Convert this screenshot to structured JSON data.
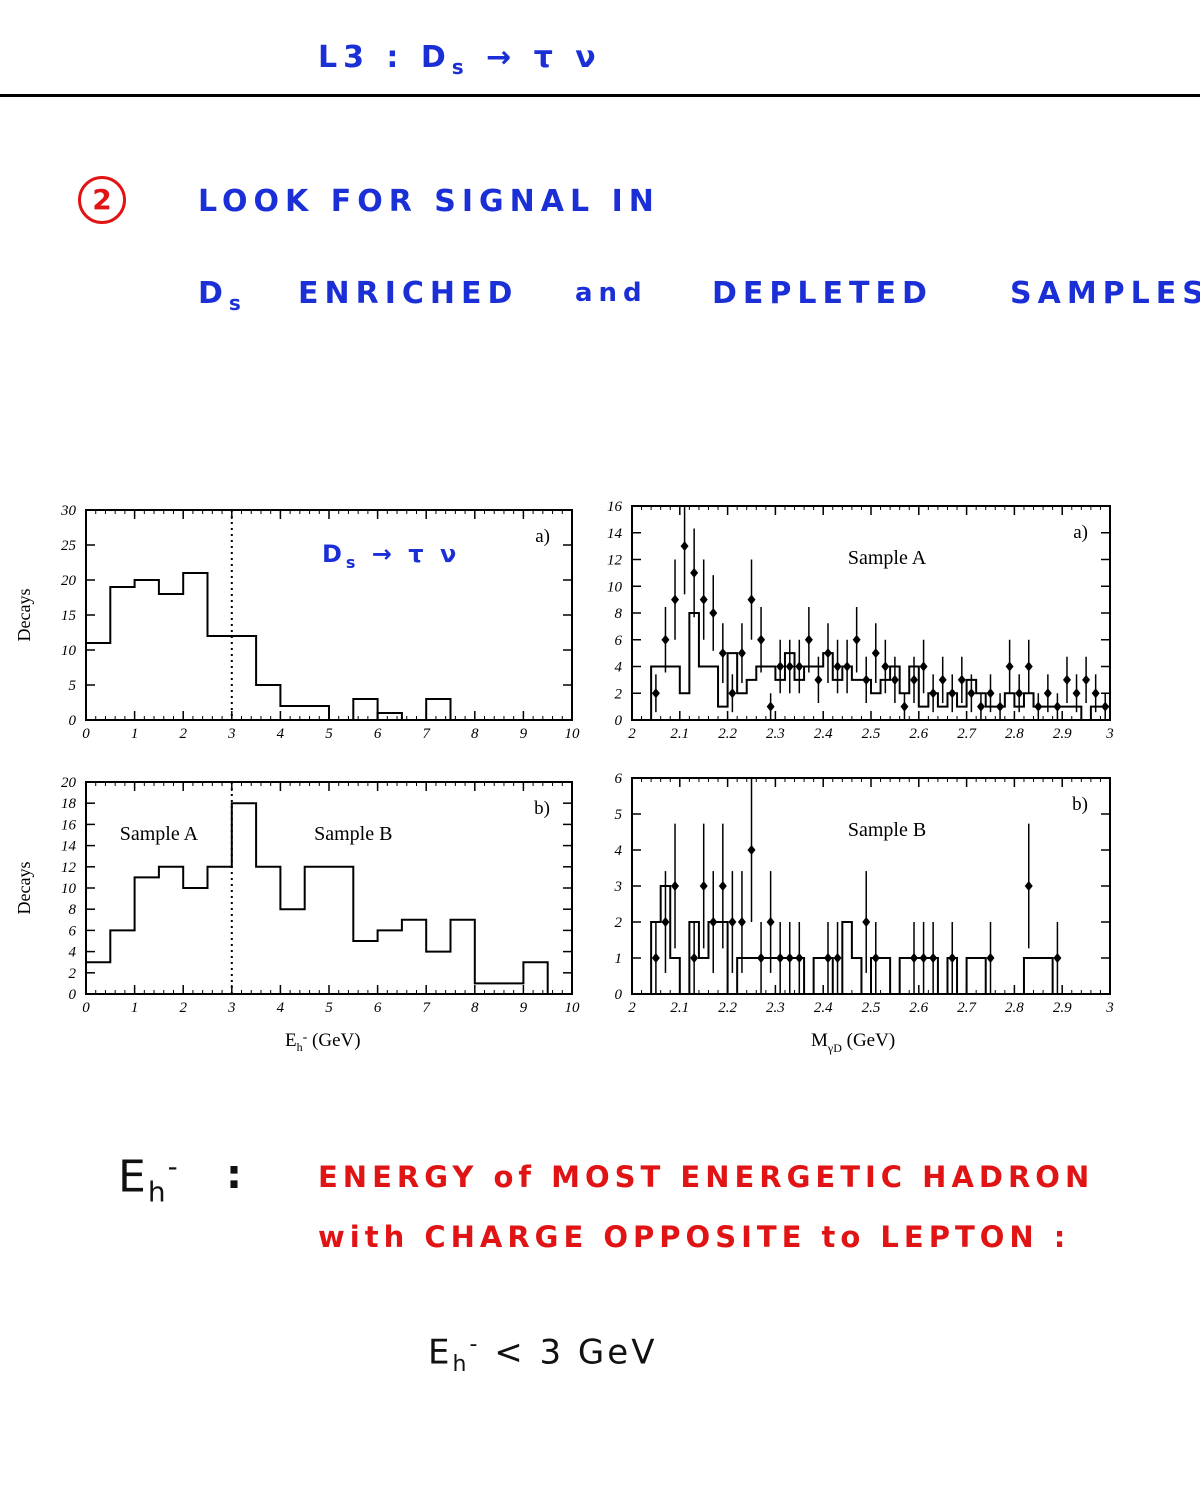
{
  "header": {
    "title": "L3  :  D",
    "title_sub": "s",
    "title_rest": " → τ ν"
  },
  "step": {
    "number": "2",
    "line1": "LOOK   FOR   SIGNAL     IN",
    "line2_a": "D",
    "line2_a_sub": "s",
    "line2_b": "ENRICHED",
    "line2_c": "and",
    "line2_d": "DEPLETED",
    "line2_e": "SAMPLES:"
  },
  "annotation": {
    "text": "D",
    "sub": "s",
    "rest": " → τ ν"
  },
  "definition": {
    "symbol": "E",
    "symbol_sub": "h",
    "symbol_sup": "-",
    "colon": ":",
    "line1": "ENERGY  of   MOST  ENERGETIC  HADRON",
    "line2": "with  CHARGE    OPPOSITE   to  LEPTON :"
  },
  "cut": {
    "symbol": "E",
    "symbol_sub": "h",
    "symbol_sup": "-",
    "rest": "  <  3 GeV"
  },
  "colors": {
    "blue_ink": "#1a2fd6",
    "red_ink": "#e01414",
    "dark_ink": "#111111"
  },
  "chart_data": [
    {
      "id": "left-a",
      "type": "bar",
      "ylabel": "Decays",
      "panel_label": "a)",
      "xlim": [
        0,
        10
      ],
      "ylim": [
        0,
        30
      ],
      "yticks": [
        0,
        5,
        10,
        15,
        20,
        25,
        30
      ],
      "xticks": [
        0,
        1,
        2,
        3,
        4,
        5,
        6,
        7,
        8,
        9,
        10
      ],
      "bin_width": 0.5,
      "values": [
        11,
        19,
        20,
        18,
        21,
        12,
        12,
        5,
        2,
        2,
        0,
        0,
        0,
        0,
        0,
        0,
        0,
        0,
        0,
        0
      ],
      "values_note": "",
      "vline": 3,
      "extra_bins": [
        [
          5.5,
          6.0,
          3
        ],
        [
          6.0,
          6.5,
          1
        ],
        [
          7.0,
          7.5,
          3
        ]
      ]
    },
    {
      "id": "left-b",
      "type": "bar",
      "ylabel": "Decays",
      "panel_label": "b)",
      "xlabel": "E",
      "xlabel_sub": "h",
      "xlabel_sup": "-",
      "xlabel_unit": " (GeV)",
      "xlim": [
        0,
        10
      ],
      "ylim": [
        0,
        20
      ],
      "yticks": [
        0,
        2,
        4,
        6,
        8,
        10,
        12,
        14,
        16,
        18,
        20
      ],
      "xticks": [
        0,
        1,
        2,
        3,
        4,
        5,
        6,
        7,
        8,
        9,
        10
      ],
      "bin_width": 0.5,
      "values": [
        3,
        6,
        11,
        12,
        10,
        12,
        18,
        12,
        8,
        12,
        12,
        5,
        6,
        7,
        4,
        7,
        1,
        1,
        3,
        0
      ],
      "vline": 3,
      "region_labels": [
        "Sample A",
        "Sample B"
      ]
    },
    {
      "id": "right-a",
      "type": "scatter",
      "panel_label": "a)",
      "sample_label": "Sample A",
      "xlim": [
        2,
        3
      ],
      "ylim": [
        0,
        16
      ],
      "yticks": [
        0,
        2,
        4,
        6,
        8,
        10,
        12,
        14,
        16
      ],
      "xticks": [
        2,
        2.1,
        2.2,
        2.3,
        2.4,
        2.5,
        2.6,
        2.7,
        2.8,
        2.9,
        3
      ],
      "histogram_step": 0.02,
      "histogram": [
        0,
        1,
        4,
        4,
        4,
        2,
        8,
        4,
        4,
        1,
        5,
        2,
        3,
        4,
        4,
        3,
        5,
        3,
        4,
        4,
        5,
        3,
        4,
        3,
        3,
        2,
        3,
        4,
        2,
        4,
        1,
        2,
        1,
        2,
        1,
        3,
        2,
        1,
        1,
        2,
        1,
        2,
        1,
        1,
        1,
        1,
        1,
        0,
        1,
        1
      ],
      "points_x": [
        2.05,
        2.07,
        2.09,
        2.11,
        2.13,
        2.15,
        2.17,
        2.19,
        2.21,
        2.23,
        2.25,
        2.27,
        2.29,
        2.31,
        2.33,
        2.35,
        2.37,
        2.39,
        2.41,
        2.43,
        2.45,
        2.47,
        2.49,
        2.51,
        2.53,
        2.55,
        2.57,
        2.59,
        2.61,
        2.63,
        2.65,
        2.67,
        2.69,
        2.71,
        2.73,
        2.75,
        2.77,
        2.79,
        2.81,
        2.83,
        2.85,
        2.87,
        2.89,
        2.91,
        2.93,
        2.95,
        2.97,
        2.99
      ],
      "points_y": [
        2,
        6,
        9,
        13,
        11,
        9,
        8,
        5,
        2,
        5,
        9,
        6,
        1,
        4,
        4,
        4,
        6,
        3,
        5,
        4,
        4,
        6,
        3,
        5,
        4,
        3,
        1,
        3,
        4,
        2,
        3,
        2,
        3,
        2,
        1,
        2,
        1,
        4,
        2,
        4,
        1,
        2,
        1,
        3,
        2,
        3,
        2,
        1
      ]
    },
    {
      "id": "right-b",
      "type": "scatter",
      "panel_label": "b)",
      "sample_label": "Sample B",
      "xlabel": "M",
      "xlabel_sub": "γD",
      "xlabel_unit": " (GeV)",
      "xlim": [
        2,
        3
      ],
      "ylim": [
        0,
        6
      ],
      "yticks": [
        0,
        1,
        2,
        3,
        4,
        5,
        6
      ],
      "xticks": [
        2,
        2.1,
        2.2,
        2.3,
        2.4,
        2.5,
        2.6,
        2.7,
        2.8,
        2.9,
        3
      ],
      "histogram_step": 0.02,
      "histogram": [
        0,
        1,
        2,
        3,
        1,
        0,
        2,
        1,
        2,
        2,
        0,
        1,
        1,
        1,
        1,
        1,
        1,
        1,
        0,
        1,
        1,
        0,
        2,
        1,
        0,
        1,
        1,
        0,
        1,
        1,
        1,
        1,
        0,
        1,
        0,
        1,
        1,
        0,
        0,
        0,
        0,
        1,
        1,
        1,
        0,
        0,
        0,
        0,
        0,
        0
      ],
      "points_x": [
        2.05,
        2.07,
        2.09,
        2.13,
        2.15,
        2.17,
        2.19,
        2.21,
        2.23,
        2.25,
        2.27,
        2.29,
        2.31,
        2.33,
        2.35,
        2.41,
        2.43,
        2.49,
        2.51,
        2.59,
        2.61,
        2.63,
        2.67,
        2.75,
        2.83,
        2.89
      ],
      "points_y": [
        1,
        2,
        3,
        1,
        3,
        2,
        3,
        2,
        2,
        4,
        1,
        2,
        1,
        1,
        1,
        1,
        1,
        2,
        1,
        1,
        1,
        1,
        1,
        1,
        3,
        1
      ]
    }
  ]
}
